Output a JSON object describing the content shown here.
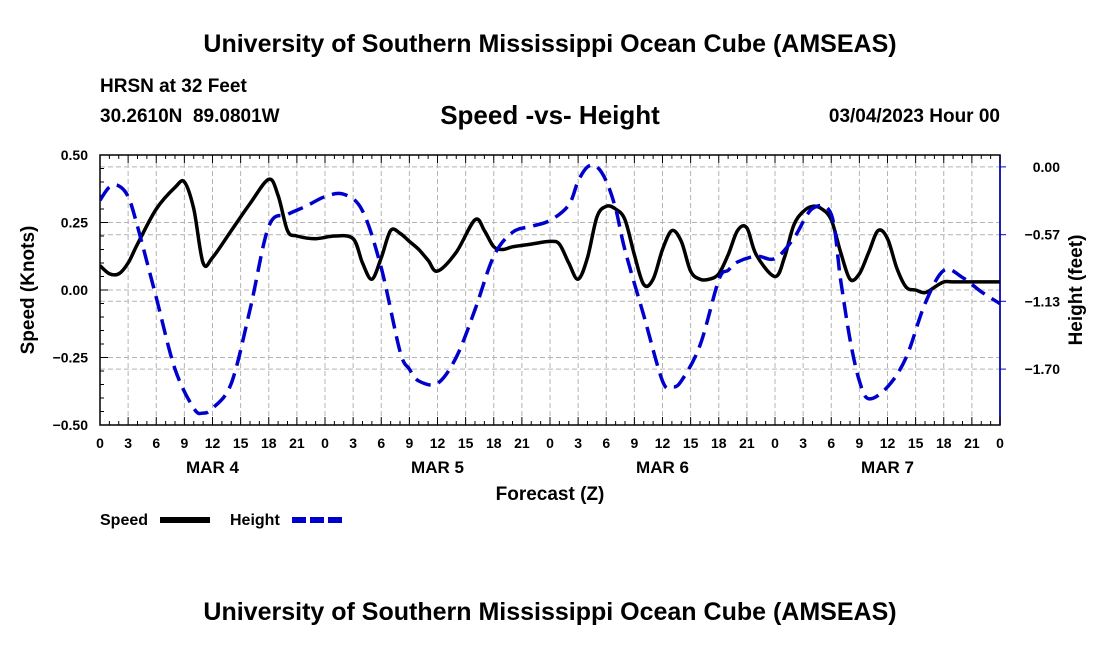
{
  "header": {
    "title": "University of Southern Mississippi Ocean Cube (AMSEAS)",
    "station": "HRSN at 32 Feet",
    "coords": "30.2610N  89.0801W",
    "subtitle": "Speed -vs- Height",
    "date": "03/04/2023 Hour 00"
  },
  "footer": {
    "title": "University of Southern Mississippi Ocean Cube (AMSEAS)"
  },
  "chart_data": {
    "type": "line",
    "title": "Speed -vs- Height",
    "xlabel": "Forecast (Z)",
    "ylabel": "Speed (Knots)",
    "ylabel_right": "Height (feet)",
    "xlim": [
      0,
      96
    ],
    "ylim": [
      -0.5,
      0.5
    ],
    "ylim_right": [
      -2.17,
      0.1
    ],
    "y_ticks": [
      0.5,
      0.25,
      0.0,
      -0.25,
      -0.5
    ],
    "y_tick_labels": [
      "0.50",
      "0.25",
      "0.00",
      "−0.25",
      "−0.50"
    ],
    "y_right_ticks": [
      0.0,
      -0.57,
      -1.13,
      -1.7
    ],
    "y_right_tick_labels": [
      "0.00",
      "−0.57",
      "−1.13",
      "−1.70"
    ],
    "x_ticks": [
      0,
      3,
      6,
      9,
      12,
      15,
      18,
      21,
      24,
      27,
      30,
      33,
      36,
      39,
      42,
      45,
      48,
      51,
      54,
      57,
      60,
      63,
      66,
      69,
      72,
      75,
      78,
      81,
      84,
      87,
      90,
      93,
      96
    ],
    "x_tick_labels": [
      "0",
      "3",
      "6",
      "9",
      "12",
      "15",
      "18",
      "21",
      "0",
      "3",
      "6",
      "9",
      "12",
      "15",
      "18",
      "21",
      "0",
      "3",
      "6",
      "9",
      "12",
      "15",
      "18",
      "21",
      "0",
      "3",
      "6",
      "9",
      "12",
      "15",
      "18",
      "21",
      "0"
    ],
    "day_labels": [
      {
        "label": "MAR 4",
        "x": 12
      },
      {
        "label": "MAR 5",
        "x": 36
      },
      {
        "label": "MAR 6",
        "x": 60
      },
      {
        "label": "MAR 7",
        "x": 84
      }
    ],
    "grid": true,
    "series": [
      {
        "name": "Speed",
        "axis": "left",
        "color": "#000000",
        "dash": "solid",
        "x": [
          0,
          1,
          2,
          3,
          4,
          6,
          8,
          9,
          10,
          11,
          12,
          14,
          16,
          18,
          19,
          20,
          21,
          23,
          25,
          27,
          28,
          29,
          30,
          31,
          32,
          33,
          34,
          35,
          36,
          38,
          40,
          41,
          42,
          43,
          44,
          46,
          48,
          49,
          50,
          51,
          52,
          53,
          54,
          55,
          56,
          57,
          58,
          59,
          60,
          61,
          62,
          63,
          64,
          65,
          66,
          67,
          68,
          69,
          70,
          72,
          73,
          74,
          75,
          76,
          77,
          78,
          79,
          80,
          81,
          82,
          83,
          84,
          85,
          86,
          87,
          88,
          89,
          90,
          91,
          92,
          93,
          94,
          95,
          96
        ],
        "values": [
          0.09,
          0.06,
          0.06,
          0.1,
          0.17,
          0.3,
          0.38,
          0.4,
          0.3,
          0.1,
          0.12,
          0.22,
          0.32,
          0.41,
          0.35,
          0.22,
          0.2,
          0.19,
          0.2,
          0.19,
          0.1,
          0.04,
          0.12,
          0.22,
          0.21,
          0.18,
          0.15,
          0.11,
          0.07,
          0.14,
          0.26,
          0.22,
          0.16,
          0.15,
          0.16,
          0.17,
          0.18,
          0.17,
          0.1,
          0.04,
          0.12,
          0.27,
          0.31,
          0.3,
          0.26,
          0.13,
          0.02,
          0.04,
          0.15,
          0.22,
          0.18,
          0.07,
          0.04,
          0.04,
          0.06,
          0.13,
          0.22,
          0.23,
          0.13,
          0.05,
          0.12,
          0.24,
          0.29,
          0.31,
          0.3,
          0.26,
          0.14,
          0.04,
          0.06,
          0.14,
          0.22,
          0.19,
          0.08,
          0.01,
          0.0,
          -0.01,
          0.01,
          0.03,
          0.03,
          0.03,
          0.03,
          0.03,
          0.03,
          0.03
        ]
      },
      {
        "name": "Height",
        "axis": "right",
        "color": "#0000cc",
        "dash": "dashed",
        "x": [
          0,
          1,
          2,
          3,
          4,
          6,
          8,
          10,
          11,
          12,
          14,
          16,
          18,
          20,
          22,
          24,
          26,
          28,
          30,
          32,
          33,
          34,
          36,
          38,
          40,
          42,
          44,
          46,
          48,
          50,
          51,
          52,
          53,
          54,
          55,
          56,
          58,
          60,
          61,
          62,
          64,
          66,
          67,
          68,
          70,
          72,
          74,
          76,
          78,
          79,
          80,
          81,
          82,
          84,
          86,
          88,
          90,
          92,
          94,
          96
        ],
        "values": [
          -0.28,
          -0.17,
          -0.16,
          -0.25,
          -0.5,
          -1.1,
          -1.7,
          -2.03,
          -2.07,
          -2.03,
          -1.82,
          -1.2,
          -0.5,
          -0.4,
          -0.33,
          -0.25,
          -0.23,
          -0.37,
          -0.85,
          -1.55,
          -1.7,
          -1.8,
          -1.82,
          -1.6,
          -1.2,
          -0.75,
          -0.55,
          -0.5,
          -0.45,
          -0.32,
          -0.12,
          0.0,
          0.0,
          -0.12,
          -0.35,
          -0.7,
          -1.25,
          -1.8,
          -1.85,
          -1.8,
          -1.5,
          -0.95,
          -0.87,
          -0.8,
          -0.75,
          -0.77,
          -0.6,
          -0.35,
          -0.4,
          -0.95,
          -1.45,
          -1.8,
          -1.95,
          -1.85,
          -1.6,
          -1.15,
          -0.87,
          -0.93,
          -1.05,
          -1.15
        ]
      }
    ],
    "legend": [
      {
        "label": "Speed",
        "series": "Speed"
      },
      {
        "label": "Height",
        "series": "Height"
      }
    ],
    "legend_position": "bottom-left"
  }
}
